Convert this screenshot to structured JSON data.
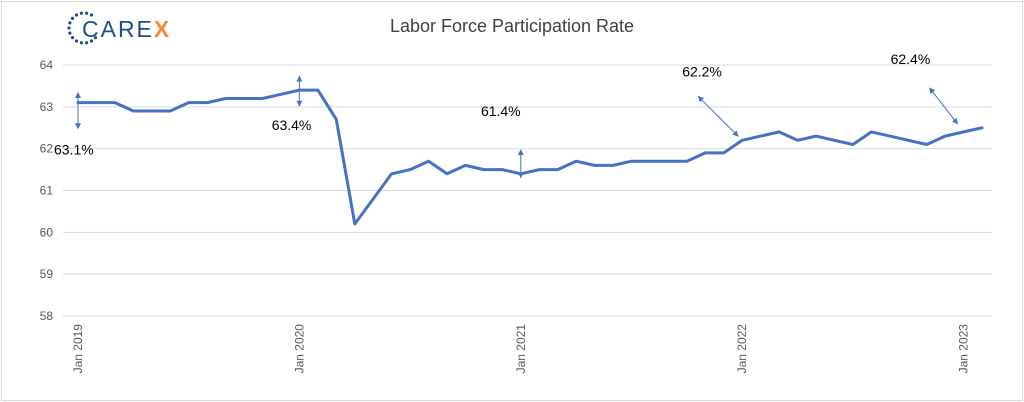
{
  "chart_data": {
    "type": "line",
    "title": "Labor Force Participation Rate",
    "xlabel": "",
    "ylabel": "",
    "ylim": [
      58,
      64
    ],
    "yticks": [
      58,
      59,
      60,
      61,
      62,
      63,
      64
    ],
    "xtick_labels": [
      "Jan 2019",
      "Jan 2020",
      "Jan 2021",
      "Jan 2022",
      "Jan 2023"
    ],
    "grid": "horizontal",
    "legend": "none",
    "line_color": "#4472c4",
    "series": [
      {
        "x": [
          "2019-01",
          "2019-02",
          "2019-03",
          "2019-04",
          "2019-05",
          "2019-06",
          "2019-07",
          "2019-08",
          "2019-09",
          "2019-10",
          "2019-11",
          "2019-12",
          "2020-01",
          "2020-02",
          "2020-03",
          "2020-04",
          "2020-05",
          "2020-06",
          "2020-07",
          "2020-08",
          "2020-09",
          "2020-10",
          "2020-11",
          "2020-12",
          "2021-01",
          "2021-02",
          "2021-03",
          "2021-04",
          "2021-05",
          "2021-06",
          "2021-07",
          "2021-08",
          "2021-09",
          "2021-10",
          "2021-11",
          "2021-12",
          "2022-01",
          "2022-02",
          "2022-03",
          "2022-04",
          "2022-05",
          "2022-06",
          "2022-07",
          "2022-08",
          "2022-09",
          "2022-10",
          "2022-11",
          "2022-12",
          "2023-01",
          "2023-02"
        ],
        "values": [
          63.1,
          63.1,
          63.1,
          62.9,
          62.9,
          62.9,
          63.1,
          63.1,
          63.2,
          63.2,
          63.2,
          63.3,
          63.4,
          63.4,
          62.7,
          60.2,
          60.8,
          61.4,
          61.5,
          61.7,
          61.4,
          61.6,
          61.5,
          61.5,
          61.4,
          61.5,
          61.5,
          61.7,
          61.6,
          61.6,
          61.7,
          61.7,
          61.7,
          61.7,
          61.9,
          61.9,
          62.2,
          62.3,
          62.4,
          62.2,
          62.3,
          62.2,
          62.1,
          62.4,
          62.3,
          62.2,
          62.1,
          62.3,
          62.4,
          62.5
        ]
      }
    ],
    "annotations": [
      {
        "text": "63.1%",
        "x": "2019-01",
        "y": 63.1
      },
      {
        "text": "63.4%",
        "x": "2020-01",
        "y": 63.4
      },
      {
        "text": "61.4%",
        "x": "2021-01",
        "y": 61.4
      },
      {
        "text": "62.2%",
        "x": "2022-01",
        "y": 62.2
      },
      {
        "text": "62.4%",
        "x": "2023-01",
        "y": 62.4
      }
    ]
  },
  "logo": {
    "prefix": "CARE",
    "suffix": "X",
    "brand_color": "#1e4f8a",
    "accent_color": "#f08a3c"
  }
}
